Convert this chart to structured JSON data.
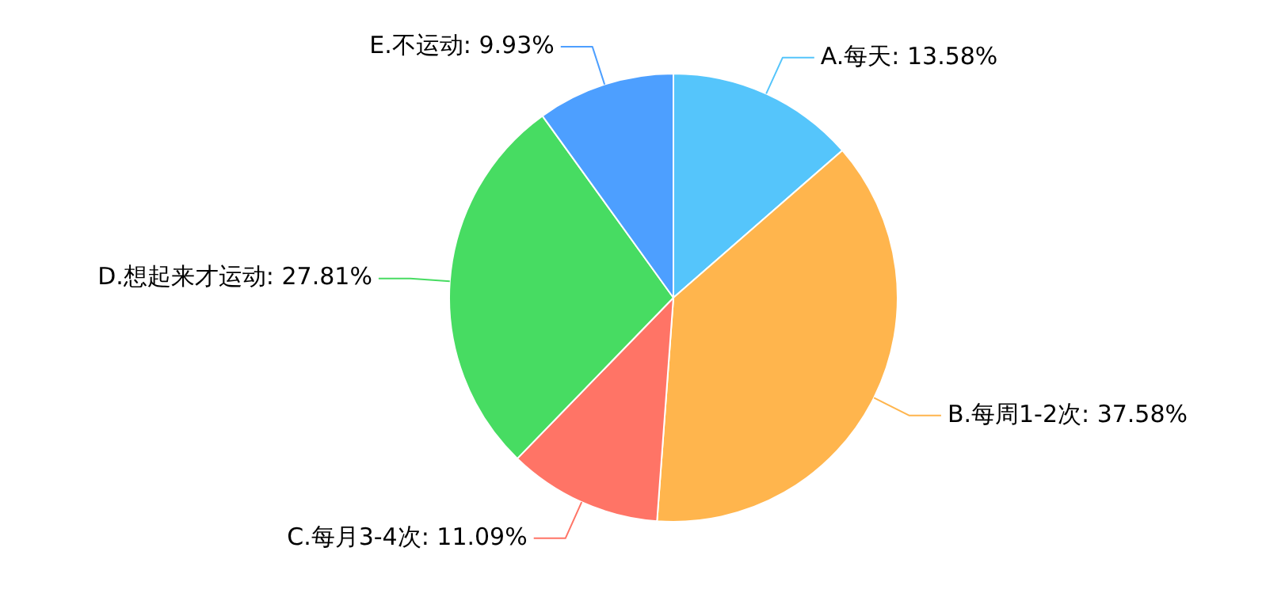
{
  "chart_data": {
    "type": "pie",
    "categories": [
      "A.每天",
      "B.每周1-2次",
      "C.每月3-4次",
      "D.想起来才运动",
      "E.不运动"
    ],
    "values": [
      13.58,
      37.58,
      11.09,
      27.81,
      9.93
    ],
    "value_labels": [
      "13.58%",
      "37.58%",
      "11.09%",
      "27.81%",
      "9.93%"
    ],
    "colors": [
      "#55c5fb",
      "#ffb54d",
      "#ff7466",
      "#47dc62",
      "#4d9fff"
    ],
    "legend": false
  }
}
